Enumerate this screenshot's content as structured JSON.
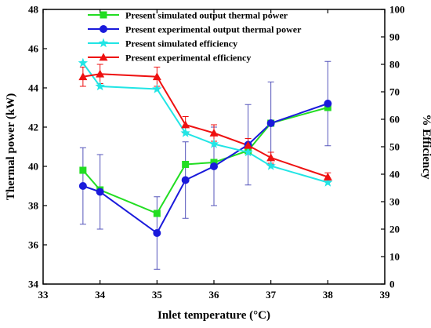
{
  "chart_data": {
    "type": "line",
    "xlabel": "Inlet temperature (°C)",
    "ylabel_left": "Thermal power (kW)",
    "ylabel_right": "% Efficiency",
    "xlim": [
      33,
      39
    ],
    "ylim_left": [
      34,
      48
    ],
    "ylim_right": [
      0,
      100
    ],
    "x_ticks": [
      33,
      34,
      35,
      36,
      37,
      38,
      39
    ],
    "y_left_ticks": [
      34,
      36,
      38,
      40,
      42,
      44,
      46,
      48
    ],
    "y_right_ticks": [
      0,
      10,
      20,
      30,
      40,
      50,
      60,
      70,
      80,
      90,
      100
    ],
    "grid": false,
    "legend_position": "top-center",
    "series": [
      {
        "name": "Present simulated output thermal power",
        "axis": "left",
        "color": "#22dd22",
        "marker": "square",
        "x": [
          33.7,
          34.0,
          35.0,
          35.5,
          36.0,
          36.6,
          37.0,
          38.0
        ],
        "y": [
          39.8,
          38.8,
          37.6,
          40.1,
          40.2,
          40.8,
          42.2,
          43.0
        ]
      },
      {
        "name": "Present experimental output thermal power",
        "axis": "left",
        "color": "#1a1adb",
        "marker": "circle",
        "x": [
          33.7,
          34.0,
          35.0,
          35.5,
          36.0,
          36.6,
          37.0,
          38.0
        ],
        "y": [
          39.0,
          38.7,
          36.6,
          39.3,
          40.0,
          41.1,
          42.2,
          43.2
        ],
        "error": [
          1.95,
          1.9,
          1.85,
          1.95,
          2.0,
          2.05,
          2.1,
          2.15
        ]
      },
      {
        "name": "Present simulated efficiency",
        "axis": "right",
        "color": "#22e5e5",
        "marker": "star",
        "x": [
          33.7,
          34.0,
          35.0,
          35.5,
          36.0,
          36.6,
          37.0,
          38.0
        ],
        "y": [
          80.5,
          72.0,
          71.0,
          55.0,
          51.0,
          48.0,
          43.0,
          37.0
        ]
      },
      {
        "name": "Present experimental efficiency",
        "axis": "right",
        "color": "#ee1111",
        "marker": "triangle",
        "x": [
          33.7,
          34.0,
          35.0,
          35.5,
          36.0,
          36.6,
          37.0,
          38.0
        ],
        "y": [
          75.5,
          76.5,
          75.5,
          58.0,
          55.0,
          50.5,
          46.0,
          39.0
        ],
        "error": [
          3.5,
          3.5,
          3.5,
          3.0,
          3.0,
          2.5,
          2.0,
          1.5
        ]
      }
    ]
  }
}
